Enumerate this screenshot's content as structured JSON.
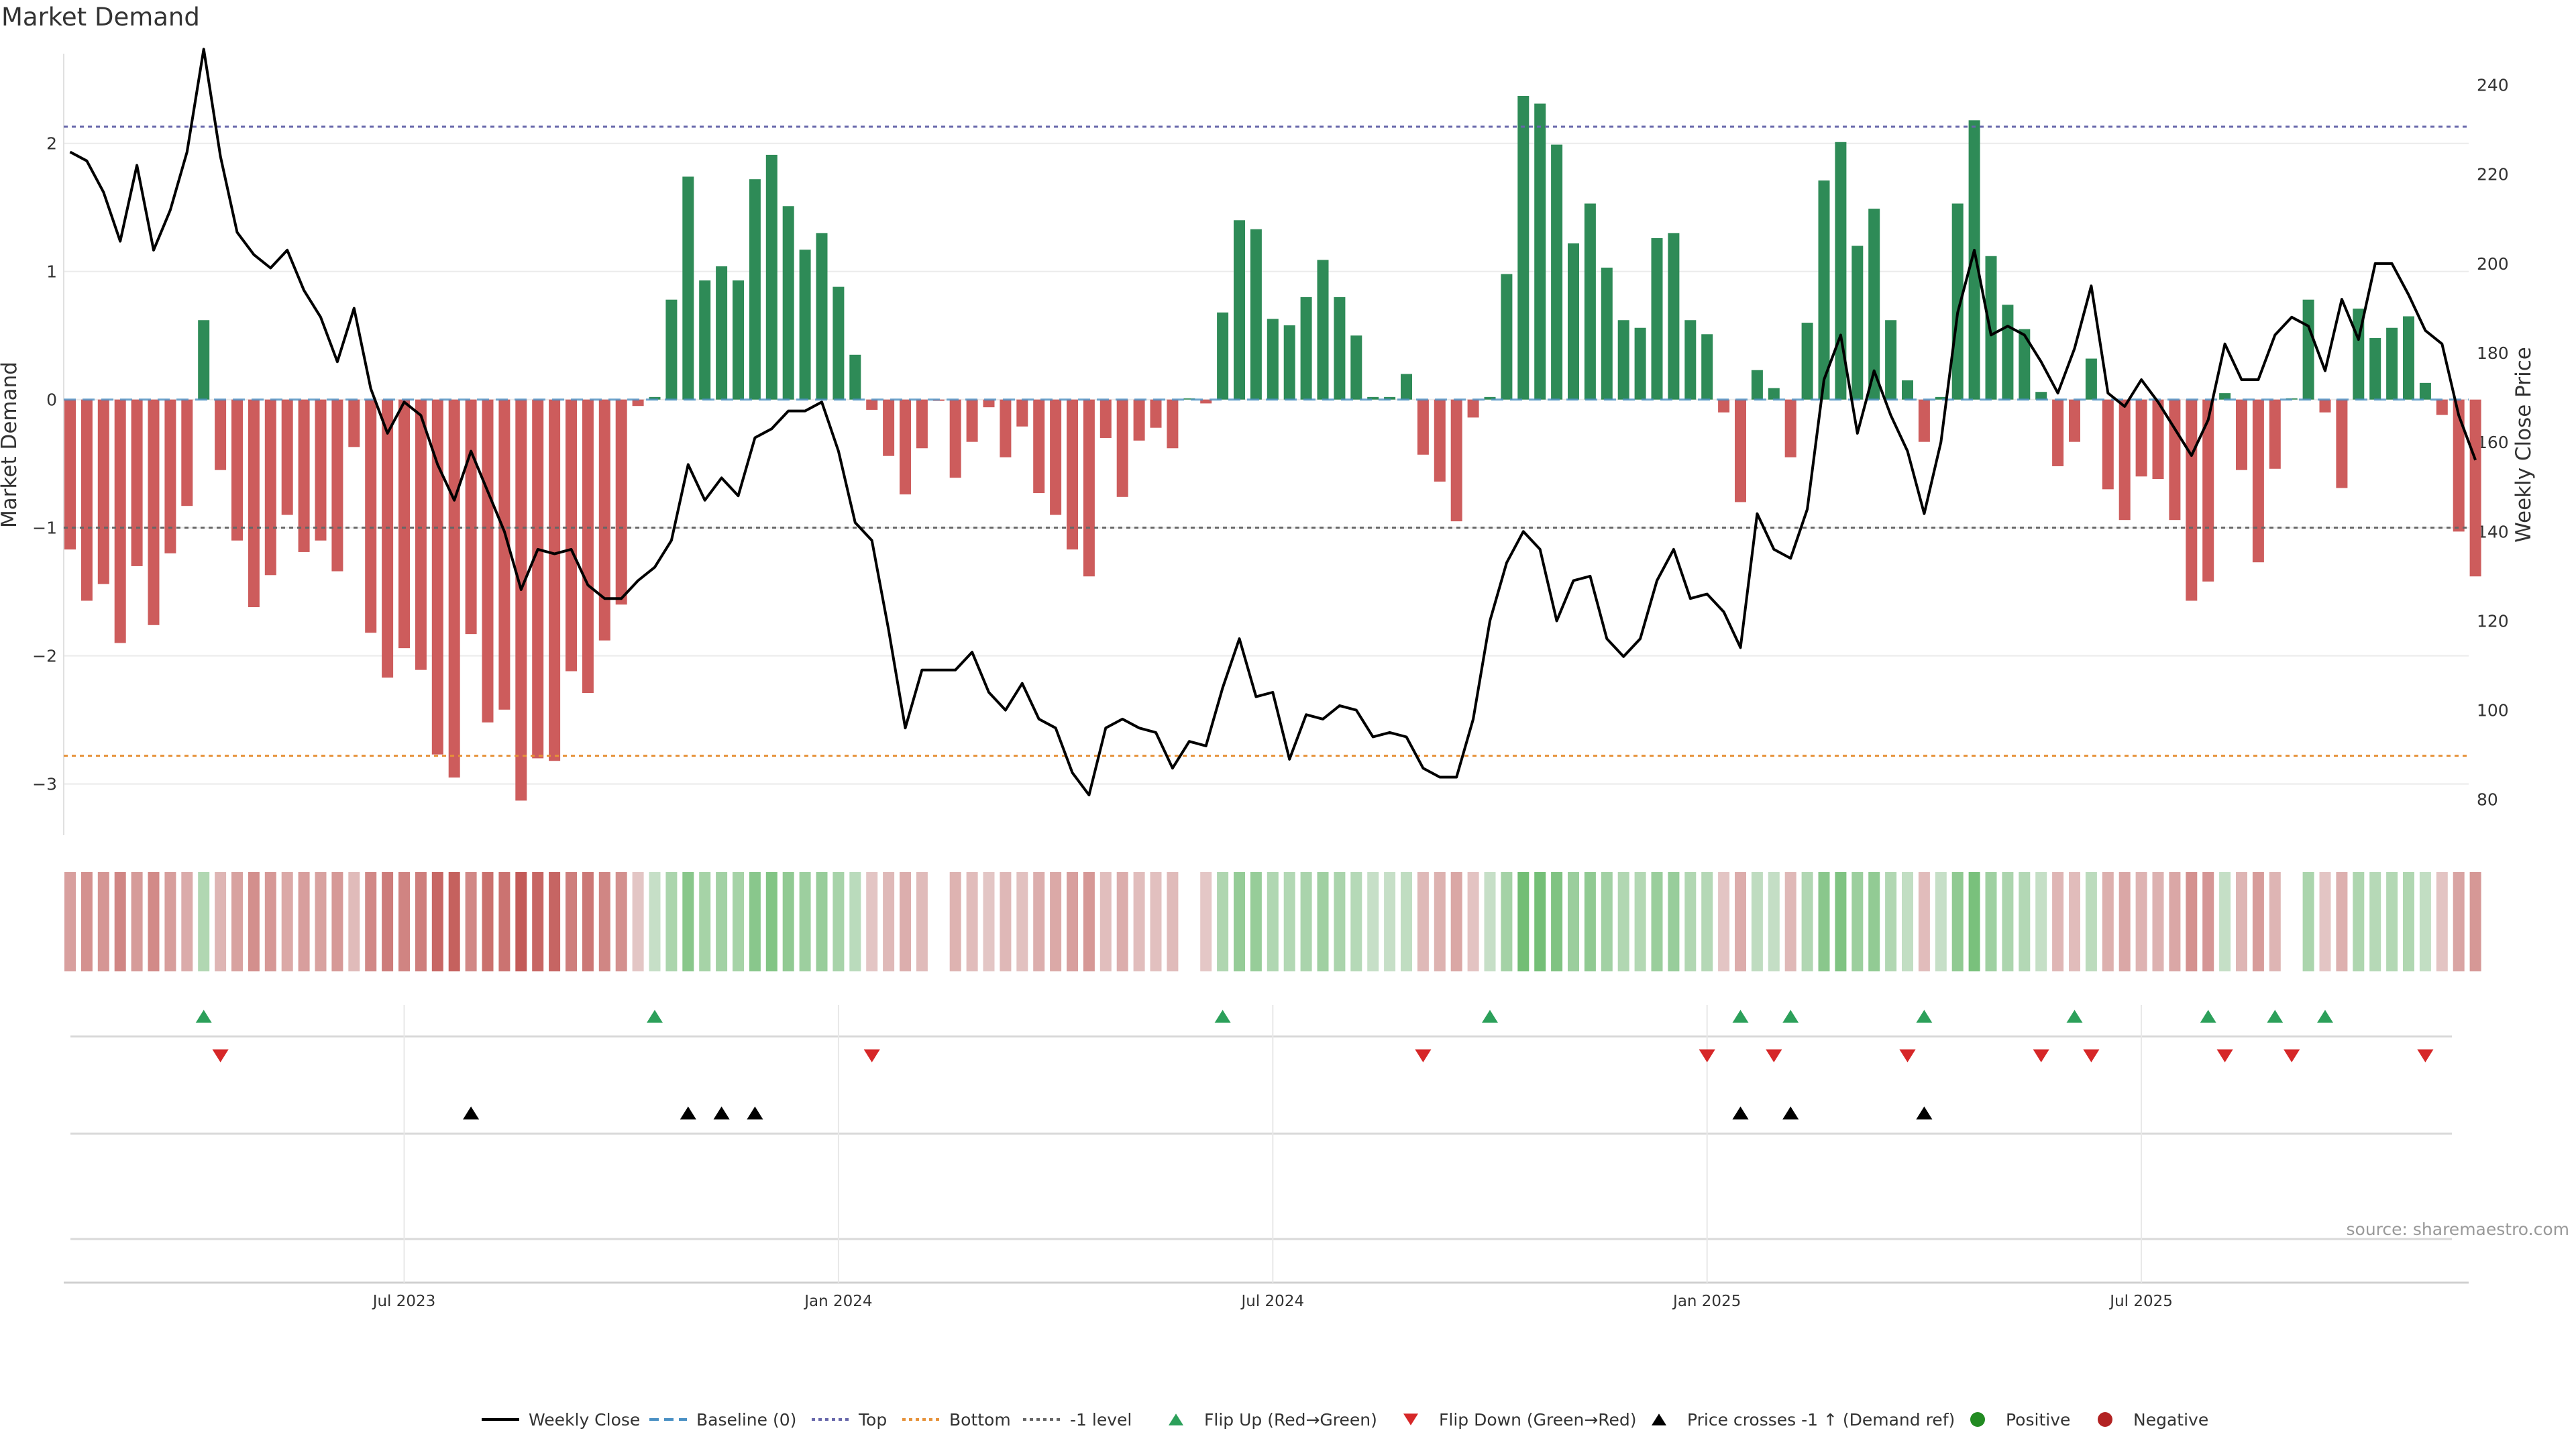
{
  "title": "Market Demand",
  "source": "source: sharemaestro.com",
  "colors": {
    "positive": "#2e8b57",
    "negative": "#cd5c5c",
    "line": "#000000",
    "top_line": "#6666aa",
    "bottom_line": "#e69138",
    "level_line": "#666666",
    "baseline": "#4a90c4",
    "flip_up": "#2ca05a",
    "flip_down": "#d62728",
    "cross": "#000000",
    "dot_positive": "#228b22",
    "dot_negative": "#b22222",
    "grid": "#ebebeb",
    "axis_text": "#333333"
  },
  "chart_data": {
    "type": "bar+line",
    "title": "Market Demand",
    "ylabel": "Market Demand",
    "y2label": "Weekly Close Price",
    "ylim": [
      -3.4,
      2.7
    ],
    "y2lim": [
      72,
      247
    ],
    "yticks": [
      {
        "value": 2,
        "label": "2"
      },
      {
        "value": 1,
        "label": "1"
      },
      {
        "value": 0,
        "label": "0"
      },
      {
        "value": -1,
        "label": "−1"
      },
      {
        "value": -2,
        "label": "−2"
      },
      {
        "value": -3,
        "label": "−3"
      }
    ],
    "y2ticks": [
      {
        "value": 240,
        "label": "240"
      },
      {
        "value": 220,
        "label": "220"
      },
      {
        "value": 200,
        "label": "200"
      },
      {
        "value": 180,
        "label": "180"
      },
      {
        "value": 160,
        "label": "160"
      },
      {
        "value": 140,
        "label": "140"
      },
      {
        "value": 120,
        "label": "120"
      },
      {
        "value": 100,
        "label": "100"
      },
      {
        "value": 80,
        "label": "80"
      }
    ],
    "xticks": [
      {
        "week": 20,
        "label": "Jul 2023"
      },
      {
        "week": 46,
        "label": "Jan 2024"
      },
      {
        "week": 72,
        "label": "Jul 2024"
      },
      {
        "week": 98,
        "label": "Jan 2025"
      },
      {
        "week": 124,
        "label": "Jul 2025"
      }
    ],
    "reference_lines": {
      "top": 2.13,
      "bottom": -2.78,
      "level": -1
    },
    "demand": [
      -1.17,
      -1.57,
      -1.44,
      -1.9,
      -1.3,
      -1.76,
      -1.2,
      -0.83,
      0.62,
      -0.55,
      -1.1,
      -1.62,
      -1.37,
      -0.9,
      -1.19,
      -1.1,
      -1.34,
      -0.37,
      -1.82,
      -2.17,
      -1.94,
      -2.11,
      -2.77,
      -2.95,
      -1.83,
      -2.52,
      -2.42,
      -3.13,
      -2.8,
      -2.82,
      -2.12,
      -2.29,
      -1.88,
      -1.6,
      -0.05,
      0.02,
      0.78,
      1.74,
      0.93,
      1.04,
      0.93,
      1.72,
      1.91,
      1.51,
      1.17,
      1.3,
      0.88,
      0.35,
      -0.08,
      -0.44,
      -0.74,
      -0.38,
      -0.01,
      -0.61,
      -0.33,
      -0.06,
      -0.45,
      -0.21,
      -0.73,
      -0.9,
      -1.17,
      -1.38,
      -0.3,
      -0.76,
      -0.32,
      -0.22,
      -0.38,
      0.01,
      -0.03,
      0.68,
      1.4,
      1.33,
      0.63,
      0.58,
      0.8,
      1.09,
      0.8,
      0.5,
      0.02,
      0.02,
      0.2,
      -0.43,
      -0.64,
      -0.95,
      -0.14,
      0.02,
      0.98,
      2.37,
      2.31,
      1.99,
      1.22,
      1.53,
      1.03,
      0.62,
      0.56,
      1.26,
      1.3,
      0.62,
      0.51,
      -0.1,
      -0.8,
      0.23,
      0.09,
      -0.45,
      0.6,
      1.71,
      2.01,
      1.2,
      1.49,
      0.62,
      0.15,
      -0.33,
      0.02,
      1.53,
      2.18,
      1.12,
      0.74,
      0.55,
      0.06,
      -0.52,
      -0.33,
      0.32,
      -0.7,
      -0.94,
      -0.6,
      -0.62,
      -0.94,
      -1.57,
      -1.42,
      0.05,
      -0.55,
      -1.27,
      -0.54,
      0.01,
      0.78,
      -0.1,
      -0.69,
      0.71,
      0.48,
      0.56,
      0.65,
      0.13,
      -0.12,
      -1.03,
      -1.38
    ],
    "price": [
      225,
      223,
      216,
      205,
      222,
      203,
      212,
      225,
      248,
      224,
      207,
      202,
      199,
      203,
      194,
      188,
      178,
      190,
      172,
      162,
      169,
      166,
      155,
      147,
      158,
      149,
      140,
      127,
      136,
      135,
      136,
      128,
      125,
      125,
      129,
      132,
      138,
      155,
      147,
      152,
      148,
      161,
      163,
      167,
      167,
      169,
      158,
      142,
      138,
      118,
      96,
      109,
      109,
      109,
      113,
      104,
      100,
      106,
      98,
      96,
      86,
      81,
      96,
      98,
      96,
      95,
      87,
      93,
      92,
      105,
      116,
      103,
      104,
      89,
      99,
      98,
      101,
      100,
      94,
      95,
      94,
      87,
      85,
      85,
      98,
      120,
      133,
      140,
      136,
      120,
      129,
      130,
      116,
      112,
      116,
      129,
      136,
      125,
      126,
      122,
      114,
      144,
      136,
      134,
      145,
      174,
      184,
      162,
      176,
      166,
      158,
      144,
      160,
      189,
      203,
      184,
      186,
      184,
      178,
      171,
      181,
      195,
      171,
      168,
      174,
      169,
      163,
      157,
      165,
      182,
      174,
      174,
      184,
      188,
      186,
      176,
      192,
      183,
      200,
      200,
      193,
      185,
      182,
      166,
      156
    ],
    "flip_up_weeks": [
      8,
      35,
      69,
      85,
      100,
      103,
      111,
      120,
      128,
      132,
      135
    ],
    "flip_down_weeks": [
      9,
      48,
      81,
      98,
      102,
      110,
      118,
      121,
      129,
      133,
      141
    ],
    "cross_weeks": [
      24,
      37,
      39,
      41,
      100,
      103,
      111
    ],
    "legend": [
      {
        "kind": "line",
        "label": "Weekly Close"
      },
      {
        "kind": "dash",
        "label": "Baseline (0)"
      },
      {
        "kind": "dot-top",
        "label": "Top"
      },
      {
        "kind": "dot-bottom",
        "label": "Bottom"
      },
      {
        "kind": "dot-level",
        "label": "-1 level"
      },
      {
        "kind": "tri-up",
        "label": "Flip Up (Red→Green)"
      },
      {
        "kind": "tri-down",
        "label": "Flip Down (Green→Red)"
      },
      {
        "kind": "tri-cross",
        "label": "Price crosses -1 ↑ (Demand ref)"
      },
      {
        "kind": "dot-pos",
        "label": "Positive"
      },
      {
        "kind": "dot-neg",
        "label": "Negative"
      }
    ]
  }
}
